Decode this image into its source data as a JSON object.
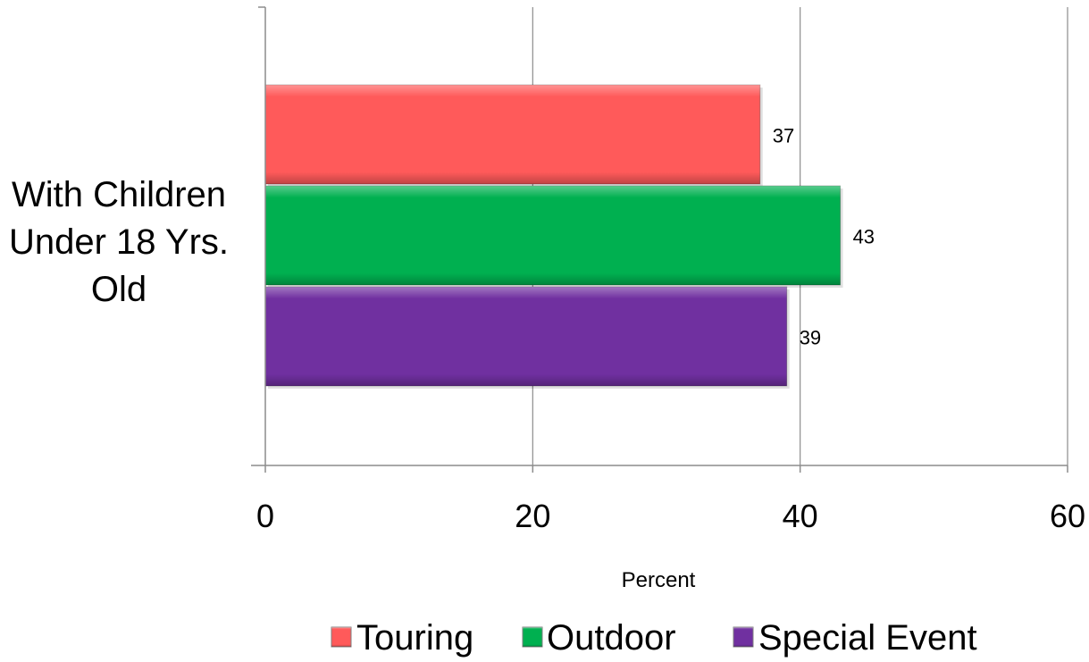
{
  "chart_data": {
    "type": "bar",
    "orientation": "horizontal",
    "categories": [
      "With Children Under 18 Yrs. Old"
    ],
    "category_label_lines": [
      "With Children",
      "Under 18 Yrs.",
      "Old"
    ],
    "series": [
      {
        "name": "Touring",
        "values": [
          37
        ],
        "color": "#ff5a5a",
        "data_label": "37"
      },
      {
        "name": "Outdoor",
        "values": [
          43
        ],
        "color": "#00b050",
        "data_label": "43"
      },
      {
        "name": "Special Event",
        "values": [
          39
        ],
        "color": "#7030a0",
        "data_label": "39"
      }
    ],
    "xlabel": "Percent",
    "xlim": [
      0,
      60
    ],
    "xticks": [
      0,
      20,
      40,
      60
    ],
    "xtick_labels": [
      "0",
      "20",
      "40",
      "60"
    ],
    "grid": true,
    "legend_position": "bottom"
  }
}
